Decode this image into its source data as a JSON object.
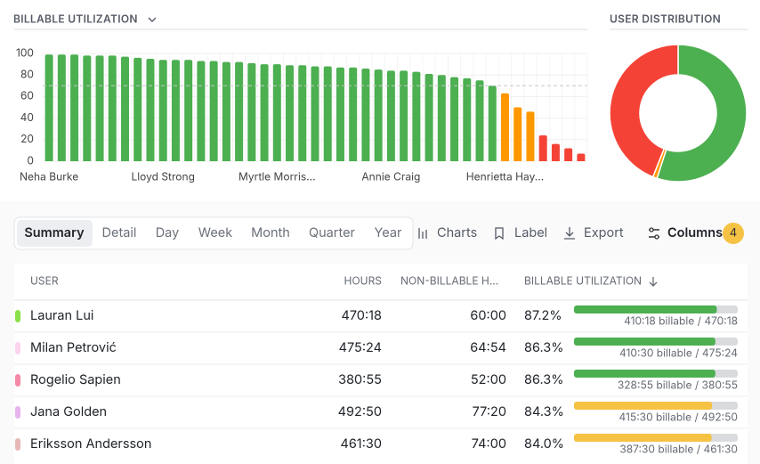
{
  "chart_data": [
    {
      "type": "bar",
      "title": "BILLABLE UTILIZATION",
      "categories": [
        "Neha Burke",
        null,
        null,
        null,
        null,
        null,
        null,
        null,
        null,
        "Lloyd Strong",
        null,
        null,
        null,
        null,
        null,
        null,
        null,
        null,
        "Myrtle Morris...",
        null,
        null,
        null,
        null,
        null,
        null,
        null,
        null,
        "Annie Craig",
        null,
        null,
        null,
        null,
        null,
        null,
        null,
        null,
        "Henrietta Hay...",
        null,
        null,
        null,
        null,
        null,
        null
      ],
      "values": [
        99,
        99,
        99,
        98,
        98,
        98,
        97,
        96,
        95,
        94,
        94,
        94,
        93,
        93,
        92,
        92,
        91,
        90,
        90,
        89,
        89,
        88,
        88,
        87,
        87,
        86,
        85,
        84,
        84,
        83,
        81,
        80,
        78,
        77,
        75,
        70,
        63,
        50,
        46,
        24,
        16,
        12,
        7
      ],
      "colors": [
        "#4caf50",
        "#4caf50",
        "#4caf50",
        "#4caf50",
        "#4caf50",
        "#4caf50",
        "#4caf50",
        "#4caf50",
        "#4caf50",
        "#4caf50",
        "#4caf50",
        "#4caf50",
        "#4caf50",
        "#4caf50",
        "#4caf50",
        "#4caf50",
        "#4caf50",
        "#4caf50",
        "#4caf50",
        "#4caf50",
        "#4caf50",
        "#4caf50",
        "#4caf50",
        "#4caf50",
        "#4caf50",
        "#4caf50",
        "#4caf50",
        "#4caf50",
        "#4caf50",
        "#4caf50",
        "#4caf50",
        "#4caf50",
        "#4caf50",
        "#4caf50",
        "#4caf50",
        "#4caf50",
        "#ff9800",
        "#ff9800",
        "#ff9800",
        "#f44336",
        "#f44336",
        "#f44336",
        "#f44336"
      ],
      "ylim": [
        0,
        100
      ],
      "yticks": [
        0,
        20,
        40,
        60,
        80,
        100
      ],
      "grid": true,
      "target": 70
    },
    {
      "type": "pie",
      "title": "USER DISTRIBUTION",
      "donut": true,
      "values": [
        55,
        1,
        44
      ],
      "colors": [
        "#4caf50",
        "#ff9800",
        "#f44336"
      ]
    }
  ],
  "toolbar": {
    "tabs": [
      "Summary",
      "Detail",
      "Day",
      "Week",
      "Month",
      "Quarter",
      "Year"
    ],
    "selected": 0,
    "buttons": [
      "Charts",
      "Label",
      "Export"
    ],
    "columns": "Columns",
    "columns_count": "4"
  },
  "table": {
    "columns": [
      "USER",
      "HOURS",
      "NON-BILLABLE H...",
      "BILLABLE UTILIZATION"
    ],
    "rows": [
      {
        "color": "#8be04a",
        "user": "Lauran Lui",
        "hours": "470:18",
        "non_billable": "60:00",
        "utilization": {
          "value": 87.2,
          "label": "87.2%"
        },
        "bar_color": "#4caf50",
        "bar_label": "410:18 billable / 470:18"
      },
      {
        "color": "#fcd5f0",
        "user": "Milan Petrović",
        "hours": "475:24",
        "non_billable": "64:54",
        "utilization": {
          "value": 86.3,
          "label": "86.3%"
        },
        "bar_color": "#4caf50",
        "bar_label": "410:30 billable / 475:24"
      },
      {
        "color": "#f48aa6",
        "user": "Rogelio Sapien",
        "hours": "380:55",
        "non_billable": "52:00",
        "utilization": {
          "value": 86.3,
          "label": "86.3%"
        },
        "bar_color": "#4caf50",
        "bar_label": "328:55 billable / 380:55"
      },
      {
        "color": "#e8b4f0",
        "user": "Jana Golden",
        "hours": "492:50",
        "non_billable": "77:20",
        "utilization": {
          "value": 84.3,
          "label": "84.3%"
        },
        "bar_color": "#f6c244",
        "bar_label": "415:30 billable / 492:50"
      },
      {
        "color": "#e8b8b8",
        "user": "Eriksson Andersson",
        "hours": "461:30",
        "non_billable": "74:00",
        "utilization": {
          "value": 84.0,
          "label": "84.0%"
        },
        "bar_color": "#f6c244",
        "bar_label": "387:30 billable / 461:30"
      }
    ]
  }
}
